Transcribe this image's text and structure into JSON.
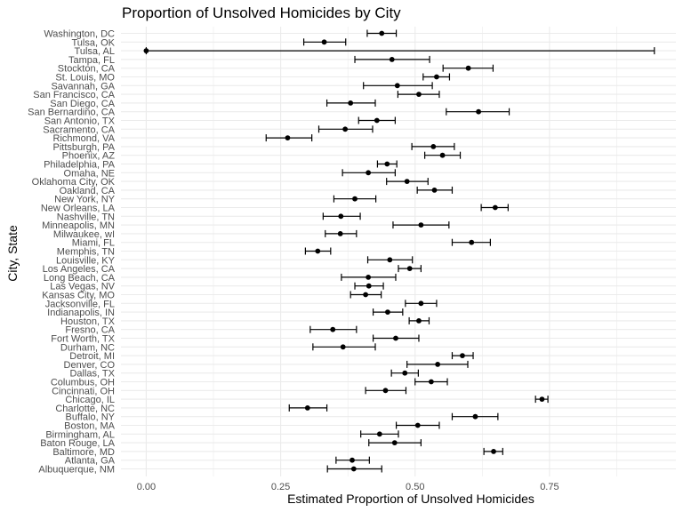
{
  "chart_data": {
    "type": "scatter",
    "title": "Proportion of Unsolved Homicides by City",
    "xlabel": "Estimated Proportion of Unsolved Homicides",
    "ylabel": "City, State",
    "xlim": [
      -0.047,
      0.985
    ],
    "x_ticks": [
      "0.00",
      "0.25",
      "0.50",
      "0.75"
    ],
    "x_tick_values": [
      0,
      0.25,
      0.5,
      0.75
    ],
    "grid": true,
    "legend": "none",
    "colors": {
      "point": "#000000",
      "grid": "#ebebeb"
    },
    "cities": [
      {
        "name": "Albuquerque, NM",
        "estimate": 0.386,
        "low": 0.337,
        "high": 0.438
      },
      {
        "name": "Atlanta, GA",
        "estimate": 0.383,
        "low": 0.353,
        "high": 0.415
      },
      {
        "name": "Baltimore, MD",
        "estimate": 0.646,
        "low": 0.628,
        "high": 0.663
      },
      {
        "name": "Baton Rouge, LA",
        "estimate": 0.462,
        "low": 0.414,
        "high": 0.511
      },
      {
        "name": "Birmingham, AL",
        "estimate": 0.434,
        "low": 0.399,
        "high": 0.469
      },
      {
        "name": "Boston, MA",
        "estimate": 0.505,
        "low": 0.465,
        "high": 0.545
      },
      {
        "name": "Buffalo, NY",
        "estimate": 0.612,
        "low": 0.569,
        "high": 0.654
      },
      {
        "name": "Charlotte, NC",
        "estimate": 0.3,
        "low": 0.266,
        "high": 0.336
      },
      {
        "name": "Chicago, IL",
        "estimate": 0.736,
        "low": 0.724,
        "high": 0.747
      },
      {
        "name": "Cincinnati, OH",
        "estimate": 0.445,
        "low": 0.408,
        "high": 0.483
      },
      {
        "name": "Columbus, OH",
        "estimate": 0.53,
        "low": 0.5,
        "high": 0.56
      },
      {
        "name": "Dallas, TX",
        "estimate": 0.481,
        "low": 0.456,
        "high": 0.506
      },
      {
        "name": "Denver, CO",
        "estimate": 0.542,
        "low": 0.485,
        "high": 0.598
      },
      {
        "name": "Detroit, MI",
        "estimate": 0.588,
        "low": 0.569,
        "high": 0.608
      },
      {
        "name": "Durham, NC",
        "estimate": 0.366,
        "low": 0.31,
        "high": 0.426
      },
      {
        "name": "Fort Worth, TX",
        "estimate": 0.464,
        "low": 0.422,
        "high": 0.507
      },
      {
        "name": "Fresno, CA",
        "estimate": 0.347,
        "low": 0.305,
        "high": 0.391
      },
      {
        "name": "Houston, TX",
        "estimate": 0.507,
        "low": 0.489,
        "high": 0.526
      },
      {
        "name": "Indianapolis, IN",
        "estimate": 0.449,
        "low": 0.422,
        "high": 0.477
      },
      {
        "name": "Jacksonville, FL",
        "estimate": 0.511,
        "low": 0.482,
        "high": 0.54
      },
      {
        "name": "Kansas City, MO",
        "estimate": 0.408,
        "low": 0.38,
        "high": 0.437
      },
      {
        "name": "Las Vegas, NV",
        "estimate": 0.414,
        "low": 0.388,
        "high": 0.441
      },
      {
        "name": "Long Beach, CA",
        "estimate": 0.413,
        "low": 0.363,
        "high": 0.464
      },
      {
        "name": "Los Angeles, CA",
        "estimate": 0.49,
        "low": 0.469,
        "high": 0.511
      },
      {
        "name": "Louisville, KY",
        "estimate": 0.453,
        "low": 0.412,
        "high": 0.495
      },
      {
        "name": "Memphis, TN",
        "estimate": 0.319,
        "low": 0.296,
        "high": 0.343
      },
      {
        "name": "Miami, FL",
        "estimate": 0.605,
        "low": 0.569,
        "high": 0.64
      },
      {
        "name": "Milwaukee, wI",
        "estimate": 0.361,
        "low": 0.333,
        "high": 0.391
      },
      {
        "name": "Minneapolis, MN",
        "estimate": 0.511,
        "low": 0.459,
        "high": 0.563
      },
      {
        "name": "Nashville, TN",
        "estimate": 0.362,
        "low": 0.329,
        "high": 0.398
      },
      {
        "name": "New Orleans, LA",
        "estimate": 0.649,
        "low": 0.623,
        "high": 0.673
      },
      {
        "name": "New York, NY",
        "estimate": 0.388,
        "low": 0.349,
        "high": 0.427
      },
      {
        "name": "Oakland, CA",
        "estimate": 0.536,
        "low": 0.504,
        "high": 0.569
      },
      {
        "name": "Oklahoma City, OK",
        "estimate": 0.485,
        "low": 0.447,
        "high": 0.524
      },
      {
        "name": "Omaha, NE",
        "estimate": 0.413,
        "low": 0.365,
        "high": 0.463
      },
      {
        "name": "Philadelphia, PA",
        "estimate": 0.448,
        "low": 0.43,
        "high": 0.466
      },
      {
        "name": "Phoenix, AZ",
        "estimate": 0.551,
        "low": 0.518,
        "high": 0.584
      },
      {
        "name": "Pittsburgh, PA",
        "estimate": 0.534,
        "low": 0.494,
        "high": 0.573
      },
      {
        "name": "Richmond, VA",
        "estimate": 0.263,
        "low": 0.223,
        "high": 0.308
      },
      {
        "name": "Sacramento, CA",
        "estimate": 0.37,
        "low": 0.321,
        "high": 0.421
      },
      {
        "name": "San Antonio, TX",
        "estimate": 0.429,
        "low": 0.395,
        "high": 0.463
      },
      {
        "name": "San Bernardino, CA",
        "estimate": 0.618,
        "low": 0.558,
        "high": 0.675
      },
      {
        "name": "San Diego, CA",
        "estimate": 0.38,
        "low": 0.336,
        "high": 0.426
      },
      {
        "name": "San Francisco, CA",
        "estimate": 0.507,
        "low": 0.468,
        "high": 0.545
      },
      {
        "name": "Savannah, GA",
        "estimate": 0.467,
        "low": 0.404,
        "high": 0.532
      },
      {
        "name": "St. Louis, MO",
        "estimate": 0.54,
        "low": 0.515,
        "high": 0.564
      },
      {
        "name": "Stockton, CA",
        "estimate": 0.599,
        "low": 0.552,
        "high": 0.645
      },
      {
        "name": "Tampa, FL",
        "estimate": 0.457,
        "low": 0.388,
        "high": 0.527
      },
      {
        "name": "Tulsa, AL",
        "estimate": 0.0,
        "low": 0.0,
        "high": 0.945
      },
      {
        "name": "Tulsa, OK",
        "estimate": 0.331,
        "low": 0.293,
        "high": 0.371
      },
      {
        "name": "Washington, DC",
        "estimate": 0.438,
        "low": 0.411,
        "high": 0.465
      }
    ]
  }
}
